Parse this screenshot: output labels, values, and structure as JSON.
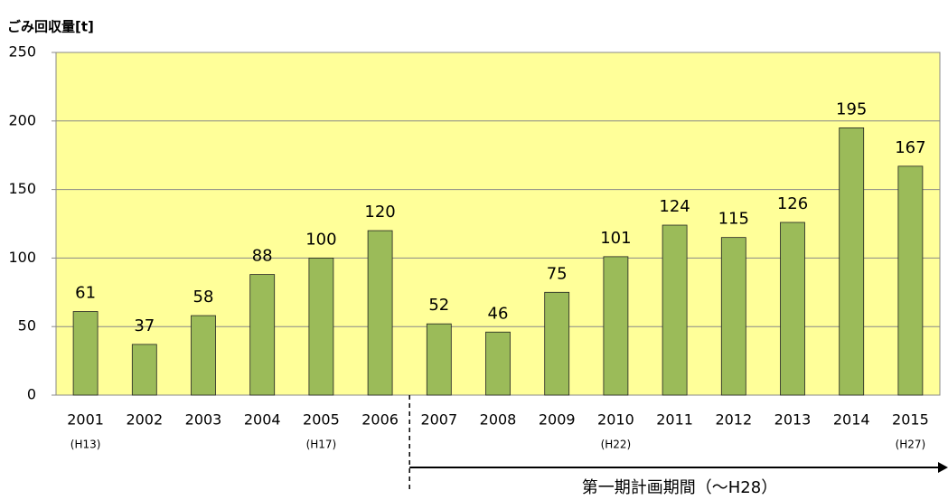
{
  "chart_data": {
    "type": "bar",
    "y_axis_label": "ごみ回収量[t]",
    "categories": [
      "2001",
      "2002",
      "2003",
      "2004",
      "2005",
      "2006",
      "2007",
      "2008",
      "2009",
      "2010",
      "2011",
      "2012",
      "2013",
      "2014",
      "2015"
    ],
    "category_sublabels": [
      "(H13)",
      null,
      null,
      null,
      "(H17)",
      null,
      null,
      null,
      null,
      "(H22)",
      null,
      null,
      null,
      null,
      "(H27)"
    ],
    "values": [
      61,
      37,
      58,
      88,
      100,
      120,
      52,
      46,
      75,
      101,
      124,
      115,
      126,
      195,
      167
    ],
    "color": "#9bbb59",
    "background": "#ffff99",
    "ylim": [
      0,
      250
    ],
    "yticks": [
      0,
      50,
      100,
      150,
      200,
      250
    ],
    "grid": true,
    "annotation": "第一期計画期間（～H28）"
  }
}
